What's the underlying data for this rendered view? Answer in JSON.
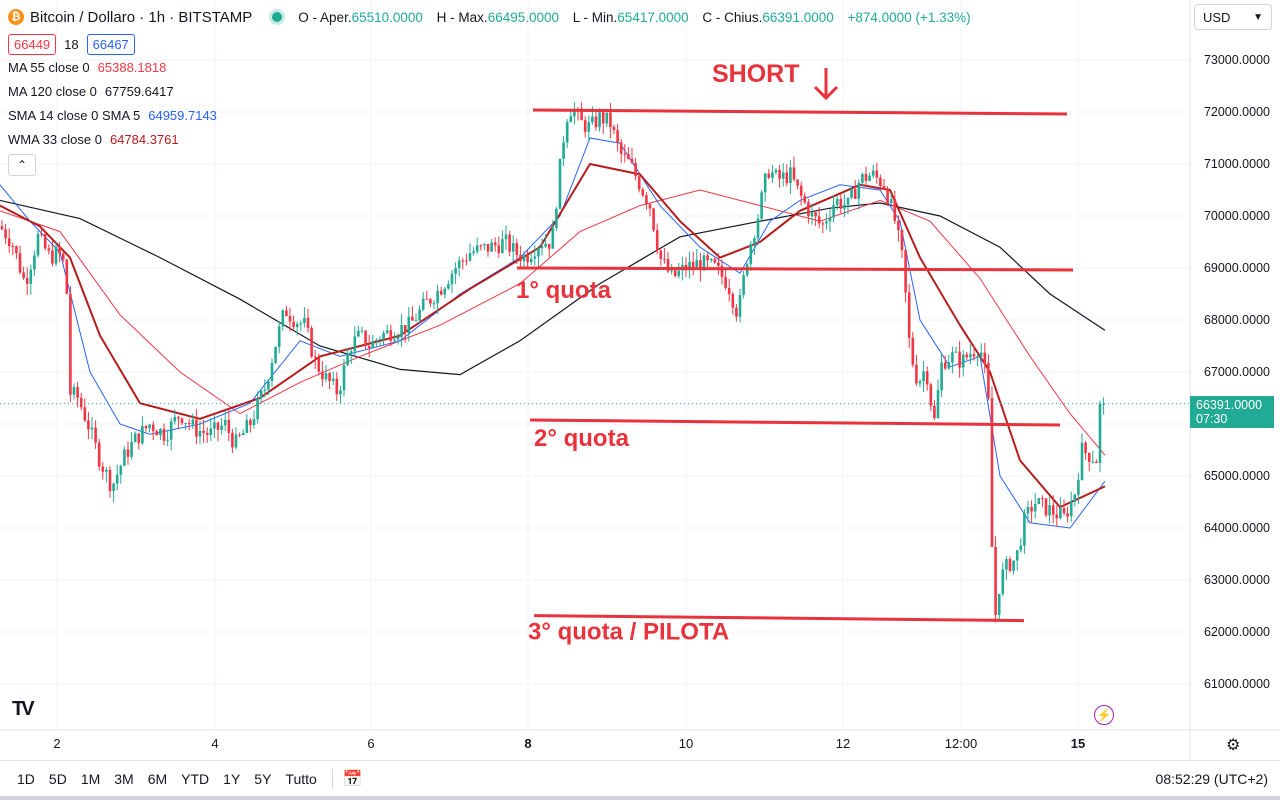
{
  "header": {
    "symbol_title": "Bitcoin / Dollaro · 1h · BITSTAMP",
    "logo_glyph": "₿",
    "ohlc": {
      "open_label": "O - Aper.",
      "open": "65510.0000",
      "high_label": "H - Max.",
      "high": "66495.0000",
      "low_label": "L - Min.",
      "low": "65417.0000",
      "close_label": "C - Chius.",
      "close": "66391.0000",
      "change": "+874.0000 (+1.33%)"
    },
    "bid": "66449",
    "spread": "18",
    "ask": "66467"
  },
  "indicators": [
    {
      "label": "MA 55 close 0",
      "value": "65388.1818",
      "color": "#f23645"
    },
    {
      "label": "MA 120 close 0",
      "value": "67759.6417",
      "color": "#131722"
    },
    {
      "label": "SMA 14 close 0 SMA 5",
      "value": "64959.7143",
      "color": "#2962ff"
    },
    {
      "label": "WMA 33 close 0",
      "value": "64784.3761",
      "color": "#b71c1c"
    }
  ],
  "currency": "USD",
  "last_price": {
    "value": "66391.0000",
    "countdown": "07:30"
  },
  "range_buttons": [
    "1D",
    "5D",
    "1M",
    "3M",
    "6M",
    "YTD",
    "1Y",
    "5Y",
    "Tutto"
  ],
  "clock": "08:52:29 (UTC+2)",
  "icons": [
    "tradingview-logo-icon",
    "bolt-icon",
    "gear-icon",
    "calendar-range-icon",
    "chevron-down-icon",
    "chevron-up-icon"
  ],
  "colors": {
    "up": "#22ab94",
    "down": "#f23645",
    "annotation": "#e8323c",
    "ma120": "#131722",
    "ma55": "#f23645",
    "sma14": "#2962ff",
    "wma33": "#b71c1c"
  },
  "chart_data": {
    "type": "candlestick",
    "y_ticks": [
      "73000.0000",
      "72000.0000",
      "71000.0000",
      "70000.0000",
      "69000.0000",
      "68000.0000",
      "67000.0000",
      "66000.0000",
      "65000.0000",
      "64000.0000",
      "63000.0000",
      "62000.0000",
      "61000.0000"
    ],
    "x_ticks": [
      "2",
      "4",
      "6",
      "8",
      "10",
      "12",
      "12:00",
      "15"
    ],
    "ylim": [
      60200,
      73900
    ],
    "price_path": [
      [
        0,
        69800
      ],
      [
        12,
        69500
      ],
      [
        25,
        68700
      ],
      [
        38,
        69600
      ],
      [
        50,
        69200
      ],
      [
        58,
        69300
      ],
      [
        66,
        69000
      ],
      [
        70,
        66600
      ],
      [
        78,
        66500
      ],
      [
        88,
        66000
      ],
      [
        100,
        65300
      ],
      [
        112,
        64800
      ],
      [
        125,
        65400
      ],
      [
        135,
        65700
      ],
      [
        150,
        66000
      ],
      [
        165,
        65800
      ],
      [
        180,
        66200
      ],
      [
        195,
        65900
      ],
      [
        210,
        65800
      ],
      [
        225,
        66000
      ],
      [
        235,
        65600
      ],
      [
        250,
        66000
      ],
      [
        265,
        66700
      ],
      [
        275,
        67500
      ],
      [
        285,
        68200
      ],
      [
        295,
        68000
      ],
      [
        305,
        67900
      ],
      [
        315,
        67200
      ],
      [
        325,
        66900
      ],
      [
        338,
        66600
      ],
      [
        350,
        67500
      ],
      [
        360,
        67700
      ],
      [
        370,
        67500
      ],
      [
        380,
        67700
      ],
      [
        395,
        67800
      ],
      [
        410,
        67900
      ],
      [
        425,
        68300
      ],
      [
        440,
        68600
      ],
      [
        455,
        69000
      ],
      [
        470,
        69300
      ],
      [
        490,
        69400
      ],
      [
        505,
        69500
      ],
      [
        515,
        69300
      ],
      [
        525,
        69200
      ],
      [
        540,
        69500
      ],
      [
        552,
        69500
      ],
      [
        558,
        70600
      ],
      [
        566,
        71900
      ],
      [
        572,
        72100
      ],
      [
        580,
        71800
      ],
      [
        590,
        71700
      ],
      [
        600,
        71900
      ],
      [
        610,
        71800
      ],
      [
        620,
        71200
      ],
      [
        630,
        71000
      ],
      [
        640,
        70600
      ],
      [
        650,
        70200
      ],
      [
        660,
        69200
      ],
      [
        672,
        68800
      ],
      [
        685,
        69000
      ],
      [
        700,
        69100
      ],
      [
        715,
        69000
      ],
      [
        728,
        68700
      ],
      [
        738,
        68100
      ],
      [
        748,
        69300
      ],
      [
        758,
        70000
      ],
      [
        768,
        70900
      ],
      [
        778,
        70700
      ],
      [
        790,
        70800
      ],
      [
        800,
        70400
      ],
      [
        812,
        70000
      ],
      [
        822,
        69800
      ],
      [
        835,
        70300
      ],
      [
        848,
        70200
      ],
      [
        860,
        70700
      ],
      [
        872,
        70800
      ],
      [
        885,
        70600
      ],
      [
        895,
        69900
      ],
      [
        903,
        69100
      ],
      [
        910,
        67400
      ],
      [
        918,
        66800
      ],
      [
        926,
        67100
      ],
      [
        934,
        66000
      ],
      [
        942,
        67200
      ],
      [
        952,
        67300
      ],
      [
        962,
        67200
      ],
      [
        972,
        67400
      ],
      [
        980,
        67500
      ],
      [
        988,
        66700
      ],
      [
        994,
        62100
      ],
      [
        1000,
        63000
      ],
      [
        1008,
        63300
      ],
      [
        1016,
        63400
      ],
      [
        1024,
        64100
      ],
      [
        1034,
        64500
      ],
      [
        1044,
        64400
      ],
      [
        1054,
        64300
      ],
      [
        1064,
        64200
      ],
      [
        1074,
        64600
      ],
      [
        1082,
        65500
      ],
      [
        1090,
        65400
      ],
      [
        1098,
        65300
      ],
      [
        1104,
        66391
      ]
    ],
    "ma120": [
      [
        0,
        70300
      ],
      [
        80,
        69950
      ],
      [
        160,
        69200
      ],
      [
        240,
        68400
      ],
      [
        320,
        67500
      ],
      [
        400,
        67050
      ],
      [
        460,
        66950
      ],
      [
        520,
        67600
      ],
      [
        600,
        68700
      ],
      [
        680,
        69600
      ],
      [
        760,
        69900
      ],
      [
        830,
        70150
      ],
      [
        880,
        70250
      ],
      [
        940,
        70000
      ],
      [
        1000,
        69400
      ],
      [
        1050,
        68500
      ],
      [
        1105,
        67800
      ]
    ],
    "ma55": [
      [
        0,
        70100
      ],
      [
        60,
        69700
      ],
      [
        120,
        68100
      ],
      [
        180,
        67000
      ],
      [
        240,
        66200
      ],
      [
        300,
        66800
      ],
      [
        360,
        67300
      ],
      [
        440,
        67900
      ],
      [
        520,
        68700
      ],
      [
        580,
        69700
      ],
      [
        640,
        70200
      ],
      [
        700,
        70500
      ],
      [
        760,
        70200
      ],
      [
        820,
        69900
      ],
      [
        880,
        70300
      ],
      [
        930,
        69900
      ],
      [
        980,
        68800
      ],
      [
        1030,
        67300
      ],
      [
        1070,
        66200
      ],
      [
        1105,
        65400
      ]
    ],
    "sma14": [
      [
        0,
        70600
      ],
      [
        30,
        69900
      ],
      [
        60,
        69300
      ],
      [
        90,
        67000
      ],
      [
        120,
        66000
      ],
      [
        150,
        65800
      ],
      [
        200,
        66000
      ],
      [
        250,
        66400
      ],
      [
        300,
        67600
      ],
      [
        340,
        67300
      ],
      [
        400,
        67600
      ],
      [
        460,
        68500
      ],
      [
        520,
        69200
      ],
      [
        560,
        70000
      ],
      [
        590,
        71500
      ],
      [
        620,
        71400
      ],
      [
        660,
        70200
      ],
      [
        700,
        69400
      ],
      [
        740,
        68900
      ],
      [
        770,
        69900
      ],
      [
        800,
        70300
      ],
      [
        840,
        70600
      ],
      [
        880,
        70500
      ],
      [
        900,
        69900
      ],
      [
        920,
        68000
      ],
      [
        950,
        67100
      ],
      [
        980,
        67300
      ],
      [
        1000,
        65000
      ],
      [
        1030,
        64100
      ],
      [
        1070,
        64000
      ],
      [
        1105,
        64900
      ]
    ],
    "wma33": [
      [
        0,
        70200
      ],
      [
        40,
        69800
      ],
      [
        70,
        69200
      ],
      [
        100,
        67700
      ],
      [
        140,
        66400
      ],
      [
        200,
        66100
      ],
      [
        260,
        66500
      ],
      [
        320,
        67300
      ],
      [
        400,
        67700
      ],
      [
        470,
        68600
      ],
      [
        540,
        69400
      ],
      [
        590,
        71000
      ],
      [
        640,
        70800
      ],
      [
        680,
        69900
      ],
      [
        720,
        69200
      ],
      [
        760,
        69500
      ],
      [
        800,
        70100
      ],
      [
        860,
        70600
      ],
      [
        890,
        70500
      ],
      [
        920,
        69200
      ],
      [
        960,
        67900
      ],
      [
        990,
        67000
      ],
      [
        1020,
        65300
      ],
      [
        1060,
        64400
      ],
      [
        1105,
        64800
      ]
    ],
    "annotations": [
      {
        "label": "SHORT",
        "price": 72000
      },
      {
        "label": "1° quota",
        "price": 69000
      },
      {
        "label": "2° quota",
        "price": 66000
      },
      {
        "label": "3° quota / PILOTA",
        "price": 62200
      }
    ],
    "current_price": 66391
  }
}
